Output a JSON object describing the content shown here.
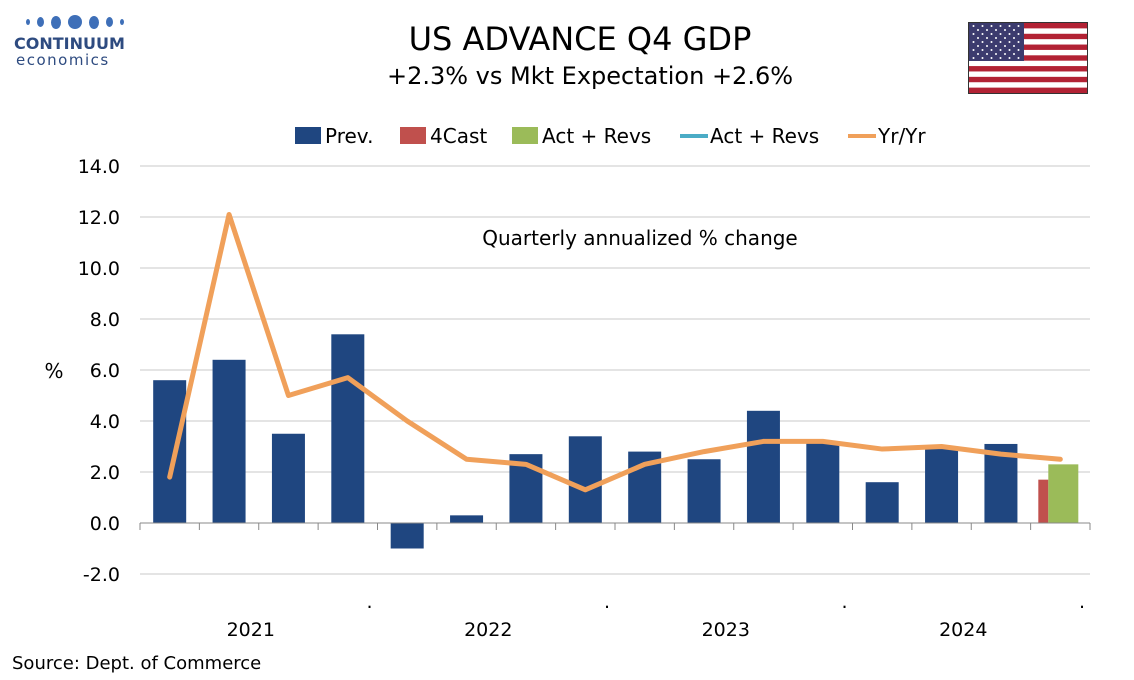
{
  "brand": {
    "name": "CONTINUUM",
    "sub": "economics"
  },
  "title": "US ADVANCE Q4  GDP",
  "subtitle": "+2.3% vs Mkt Expectation +2.6%",
  "source": "Source: Dept. of Commerce",
  "colors": {
    "prev": "#1f4680",
    "forecast": "#c0504d",
    "actual_bar": "#9bbb59",
    "actual_line": "#4bacc6",
    "yoy": "#f0a05a",
    "flag_red": "#b22234",
    "flag_blue": "#3c3b6e"
  },
  "chart_data": {
    "type": "bar",
    "annotation": "Quarterly annualized % change",
    "ylabel": "%",
    "xlabel": "",
    "ylim": [
      -2,
      14
    ],
    "yticks": [
      "-2.0",
      "0.0",
      "2.0",
      "4.0",
      "6.0",
      "8.0",
      "10.0",
      "12.0",
      "14.0"
    ],
    "year_labels": [
      "2021",
      "2022",
      "2023",
      "2024"
    ],
    "legend": [
      "Prev.",
      "4Cast",
      "Act + Revs",
      "Act + Revs",
      "Yr/Yr"
    ],
    "quarters": [
      "2021Q1",
      "2021Q2",
      "2021Q3",
      "2021Q4",
      "2022Q1",
      "2022Q2",
      "2022Q3",
      "2022Q4",
      "2023Q1",
      "2023Q2",
      "2023Q3",
      "2023Q4",
      "2024Q1",
      "2024Q2",
      "2024Q3",
      "2024Q4"
    ],
    "series": [
      {
        "name": "Prev.",
        "kind": "bar",
        "values": [
          5.6,
          6.4,
          3.5,
          7.4,
          -1.0,
          0.3,
          2.7,
          3.4,
          2.8,
          2.5,
          4.4,
          3.2,
          1.6,
          3.0,
          3.1,
          null
        ]
      },
      {
        "name": "4Cast",
        "kind": "bar",
        "values": [
          null,
          null,
          null,
          null,
          null,
          null,
          null,
          null,
          null,
          null,
          null,
          null,
          null,
          null,
          null,
          1.7
        ]
      },
      {
        "name": "Act + Revs",
        "kind": "bar",
        "values": [
          null,
          null,
          null,
          null,
          null,
          null,
          null,
          null,
          null,
          null,
          null,
          null,
          null,
          null,
          null,
          2.3
        ]
      },
      {
        "name": "Act + Revs",
        "kind": "line",
        "values": [
          null,
          null,
          null,
          null,
          null,
          null,
          null,
          null,
          null,
          null,
          null,
          null,
          null,
          null,
          2.7,
          2.5
        ]
      },
      {
        "name": "Yr/Yr",
        "kind": "line",
        "values": [
          1.8,
          12.1,
          5.0,
          5.7,
          4.0,
          2.5,
          2.3,
          1.3,
          2.3,
          2.8,
          3.2,
          3.2,
          2.9,
          3.0,
          2.7,
          2.5
        ]
      }
    ],
    "grid": true,
    "legend_position": "top"
  }
}
